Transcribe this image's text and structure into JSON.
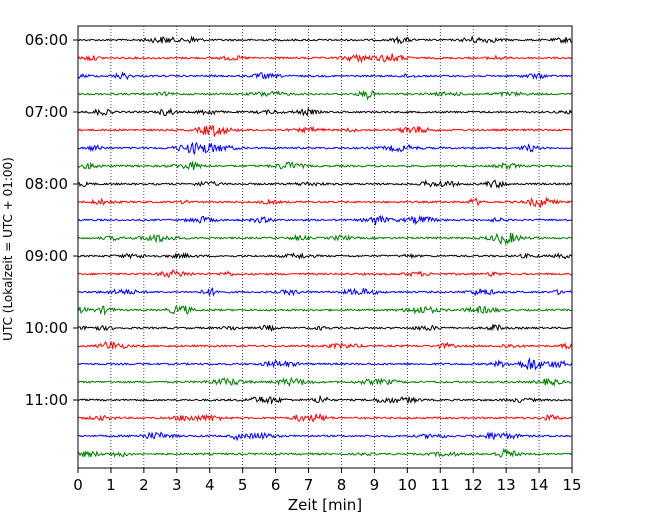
{
  "chart_data": {
    "type": "line",
    "title": "",
    "xlabel": "Zeit  [min]",
    "ylabel": "UTC (Lokalzeit = UTC + 01:00)",
    "xlim": [
      0,
      15
    ],
    "x_ticks": [
      0,
      1,
      2,
      3,
      4,
      5,
      6,
      7,
      8,
      9,
      10,
      11,
      12,
      13,
      14,
      15
    ],
    "y_tick_labels": [
      "06:00",
      "07:00",
      "08:00",
      "09:00",
      "10:00",
      "11:00"
    ],
    "grid_x": "dotted",
    "trace_interval_min": 15,
    "trace_colors": [
      "#000000",
      "#ff0000",
      "#0000ff",
      "#007f00"
    ],
    "traces": [
      {
        "start": "06:00",
        "color": "#000000"
      },
      {
        "start": "06:15",
        "color": "#ff0000"
      },
      {
        "start": "06:30",
        "color": "#0000ff"
      },
      {
        "start": "06:45",
        "color": "#007f00"
      },
      {
        "start": "07:00",
        "color": "#000000"
      },
      {
        "start": "07:15",
        "color": "#ff0000"
      },
      {
        "start": "07:30",
        "color": "#0000ff"
      },
      {
        "start": "07:45",
        "color": "#007f00"
      },
      {
        "start": "08:00",
        "color": "#000000"
      },
      {
        "start": "08:15",
        "color": "#ff0000"
      },
      {
        "start": "08:30",
        "color": "#0000ff"
      },
      {
        "start": "08:45",
        "color": "#007f00"
      },
      {
        "start": "09:00",
        "color": "#000000"
      },
      {
        "start": "09:15",
        "color": "#ff0000"
      },
      {
        "start": "09:30",
        "color": "#0000ff"
      },
      {
        "start": "09:45",
        "color": "#007f00"
      },
      {
        "start": "10:00",
        "color": "#000000"
      },
      {
        "start": "10:15",
        "color": "#ff0000"
      },
      {
        "start": "10:30",
        "color": "#0000ff"
      },
      {
        "start": "10:45",
        "color": "#007f00"
      },
      {
        "start": "11:00",
        "color": "#000000"
      },
      {
        "start": "11:15",
        "color": "#ff0000"
      },
      {
        "start": "11:30",
        "color": "#0000ff"
      },
      {
        "start": "11:45",
        "color": "#007f00"
      }
    ]
  }
}
